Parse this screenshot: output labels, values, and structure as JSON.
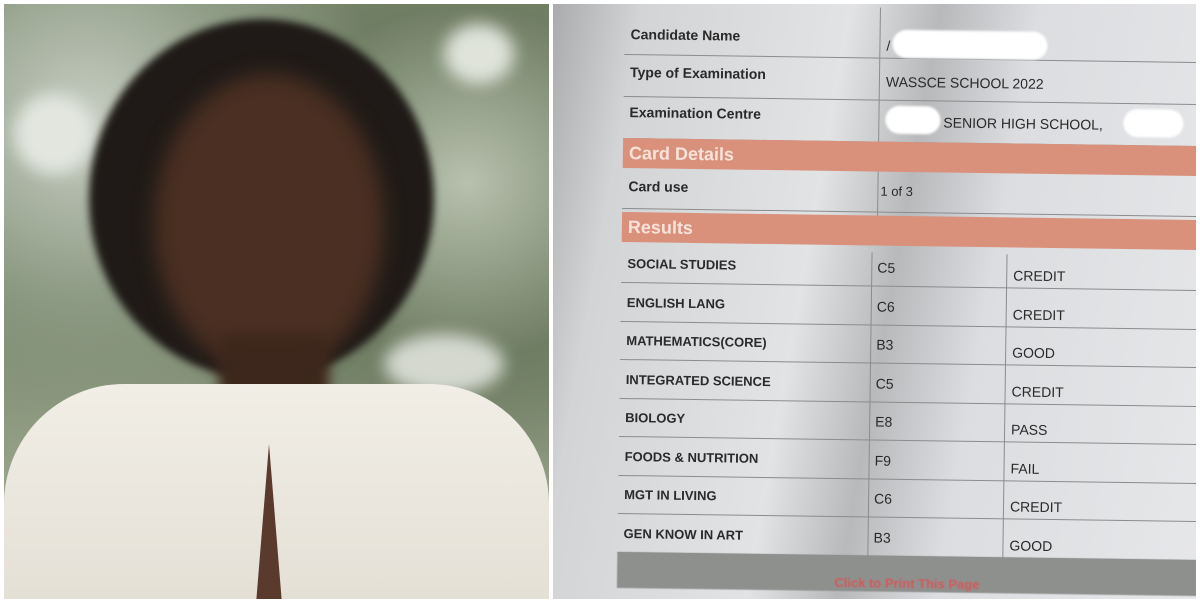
{
  "result_slip": {
    "header_rows": [
      {
        "label": "Candidate Name",
        "value": "/"
      },
      {
        "label": "Type of Examination",
        "value": "WASSCE SCHOOL 2022"
      },
      {
        "label": "Examination Centre",
        "value": "SENIOR HIGH SCHOOL,"
      }
    ],
    "card_details_heading": "Card Details",
    "card_use": {
      "label": "Card use",
      "value": "1 of 3"
    },
    "results_heading": "Results",
    "results": [
      {
        "subject": "SOCIAL STUDIES",
        "grade": "C5",
        "remark": "CREDIT"
      },
      {
        "subject": "ENGLISH LANG",
        "grade": "C6",
        "remark": "CREDIT"
      },
      {
        "subject": "MATHEMATICS(CORE)",
        "grade": "B3",
        "remark": "GOOD"
      },
      {
        "subject": "INTEGRATED SCIENCE",
        "grade": "C5",
        "remark": "CREDIT"
      },
      {
        "subject": "BIOLOGY",
        "grade": "E8",
        "remark": "PASS"
      },
      {
        "subject": "FOODS & NUTRITION",
        "grade": "F9",
        "remark": "FAIL"
      },
      {
        "subject": "MGT IN LIVING",
        "grade": "C6",
        "remark": "CREDIT"
      },
      {
        "subject": "GEN KNOW IN ART",
        "grade": "B3",
        "remark": "GOOD"
      }
    ],
    "print_link": "Click to Print This Page",
    "band_color": "#d9917c"
  }
}
